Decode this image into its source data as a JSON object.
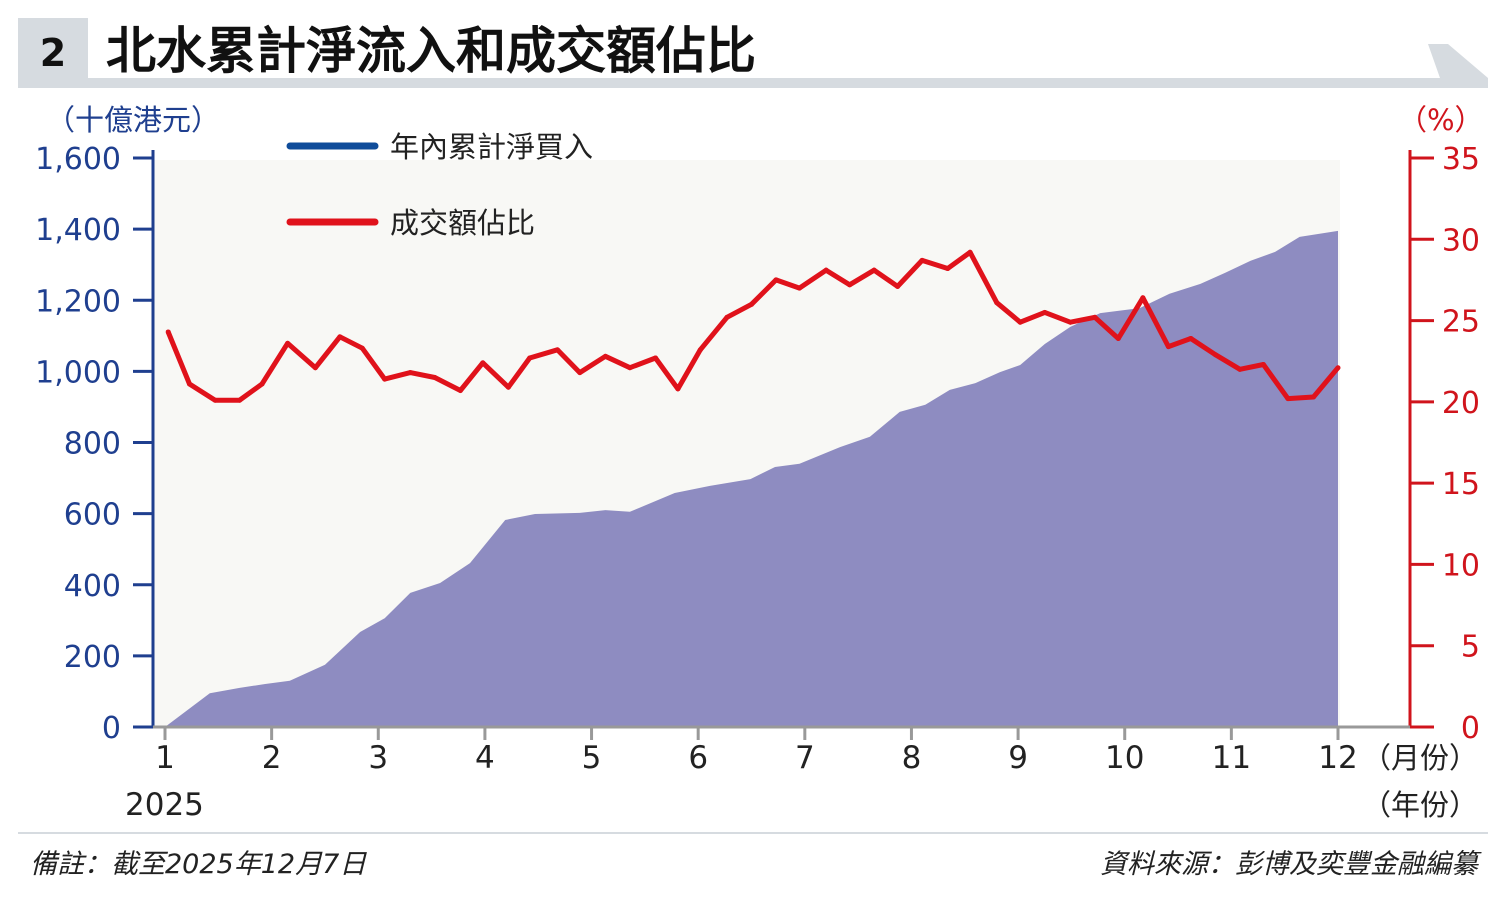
{
  "header": {
    "number": "2",
    "title": "北水累計淨流入和成交額佔比"
  },
  "colors": {
    "header_bg": "#d6dbe0",
    "area": "#8e8cc1",
    "line": "#e0121b",
    "left_axis": "#1f3f8f",
    "right_axis": "#d0141c",
    "legend_blue": "#0f4c9a"
  },
  "footer": {
    "note": "備註：截至2025年12月7日",
    "source": "資料來源：彭博及奕豐金融編纂"
  },
  "chart_data": {
    "type": "area+line",
    "title": "北水累計淨流入和成交額佔比",
    "x_ticks": [
      "1",
      "2",
      "3",
      "4",
      "5",
      "6",
      "7",
      "8",
      "9",
      "10",
      "11",
      "12"
    ],
    "x_unit": "（月份）",
    "year_label": "2025",
    "year_unit": "（年份）",
    "xlim": [
      1,
      12
    ],
    "left_axis": {
      "label": "（十億港元）",
      "ylim": [
        0,
        1600
      ],
      "ticks": [
        "0",
        "200",
        "400",
        "600",
        "800",
        "1,000",
        "1,200",
        "1,400",
        "1,600"
      ]
    },
    "right_axis": {
      "label": "（%）",
      "ylim": [
        0,
        35
      ],
      "ticks": [
        "0",
        "5",
        "10",
        "15",
        "20",
        "25",
        "30",
        "35"
      ]
    },
    "legend_position": "top-left",
    "series": [
      {
        "name": "年內累計淨買入",
        "axis": "left",
        "legend_color": "#0f4c9a",
        "fill": "#8e8cc1",
        "x": [
          1.0,
          1.42,
          1.7,
          1.94,
          2.17,
          2.5,
          2.83,
          3.06,
          3.3,
          3.58,
          3.86,
          4.19,
          4.47,
          4.89,
          5.13,
          5.36,
          5.78,
          6.11,
          6.49,
          6.72,
          6.95,
          7.33,
          7.61,
          7.89,
          8.13,
          8.36,
          8.6,
          8.83,
          9.02,
          9.25,
          9.49,
          9.77,
          10.14,
          10.42,
          10.71,
          10.94,
          11.18,
          11.41,
          11.64,
          12.0
        ],
        "y": [
          0,
          95,
          110,
          121,
          130,
          175,
          267,
          306,
          377,
          405,
          461,
          582,
          599,
          602,
          610,
          605,
          658,
          678,
          697,
          731,
          740,
          787,
          816,
          886,
          906,
          948,
          967,
          998,
          1018,
          1077,
          1125,
          1164,
          1178,
          1218,
          1246,
          1277,
          1311,
          1336,
          1378,
          1395
        ]
      },
      {
        "name": "成交額佔比",
        "axis": "right",
        "color": "#e0121b",
        "x": [
          1.03,
          1.23,
          1.47,
          1.7,
          1.91,
          2.15,
          2.41,
          2.64,
          2.85,
          3.06,
          3.3,
          3.53,
          3.77,
          3.98,
          4.22,
          4.42,
          4.68,
          4.89,
          5.13,
          5.36,
          5.6,
          5.81,
          6.02,
          6.27,
          6.5,
          6.73,
          6.95,
          7.2,
          7.42,
          7.65,
          7.87,
          8.1,
          8.34,
          8.55,
          8.8,
          9.02,
          9.25,
          9.49,
          9.72,
          9.94,
          10.17,
          10.41,
          10.62,
          10.85,
          11.08,
          11.3,
          11.53,
          11.77,
          12.0
        ],
        "y": [
          24.3,
          21.1,
          20.1,
          20.1,
          21.1,
          23.6,
          22.1,
          24.0,
          23.3,
          21.4,
          21.8,
          21.5,
          20.7,
          22.4,
          20.9,
          22.7,
          23.2,
          21.8,
          22.8,
          22.1,
          22.7,
          20.8,
          23.2,
          25.2,
          26.0,
          27.5,
          27.0,
          28.1,
          27.2,
          28.1,
          27.1,
          28.7,
          28.2,
          29.2,
          26.1,
          24.9,
          25.5,
          24.9,
          25.2,
          23.9,
          26.4,
          23.4,
          23.9,
          22.9,
          22.0,
          22.3,
          20.2,
          20.3,
          22.1
        ]
      }
    ]
  }
}
